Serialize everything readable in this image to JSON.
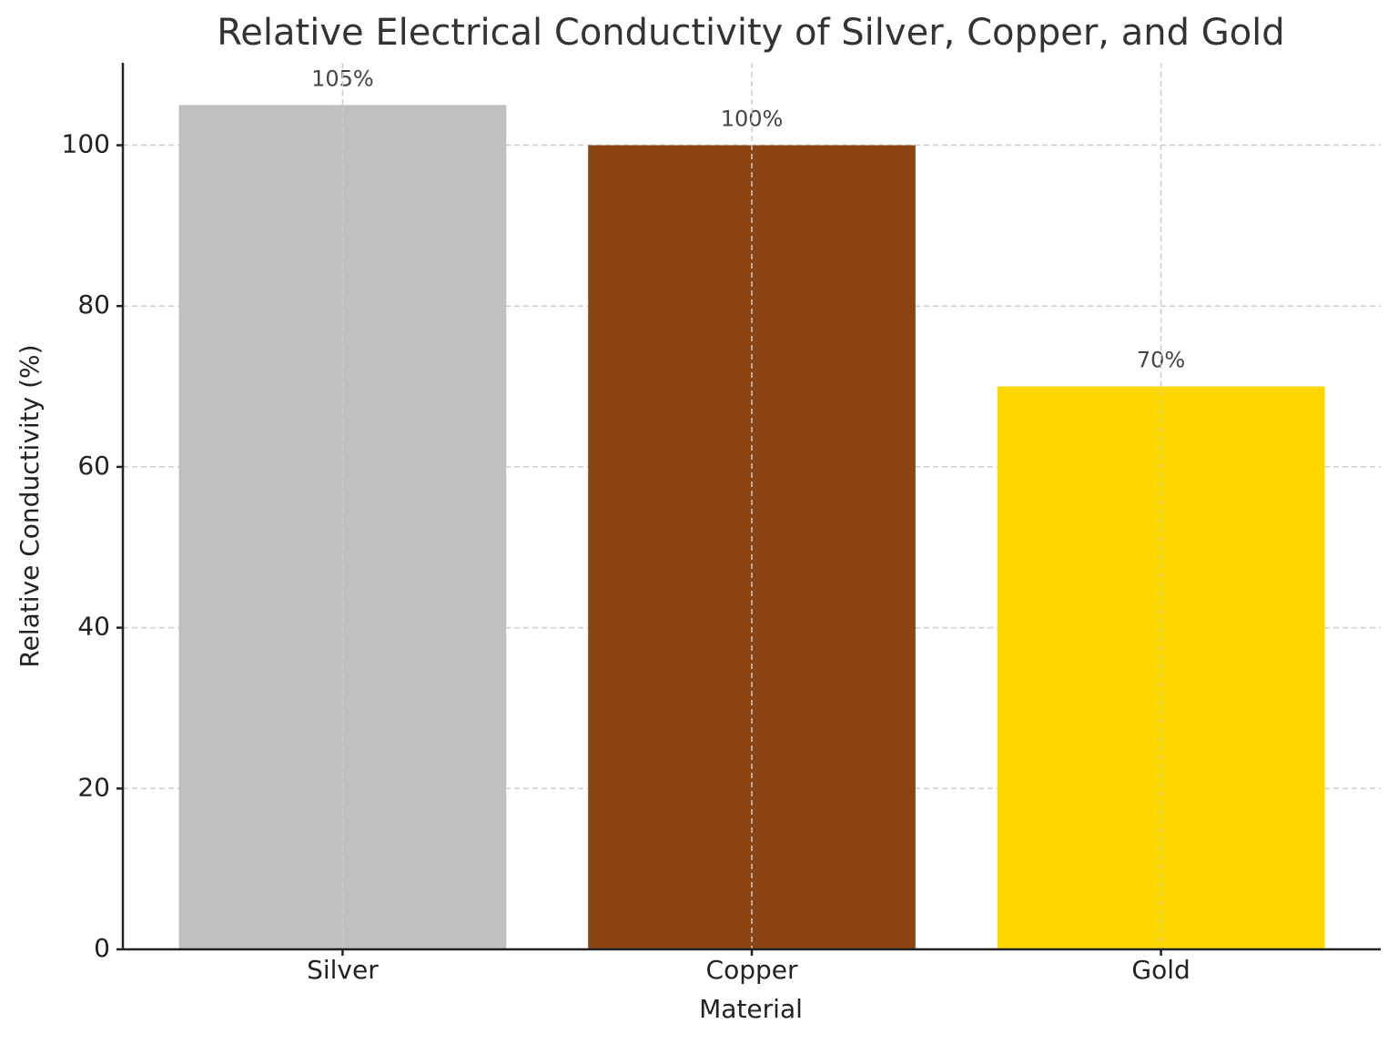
{
  "chart_data": {
    "type": "bar",
    "title": "Relative Electrical Conductivity of Silver, Copper, and Gold",
    "xlabel": "Material",
    "ylabel": "Relative Conductivity (%)",
    "categories": [
      "Silver",
      "Copper",
      "Gold"
    ],
    "values": [
      105,
      100,
      70
    ],
    "value_labels": [
      "105%",
      "100%",
      "70%"
    ],
    "colors": [
      "#c0c0c0",
      "#8b4513",
      "#ffd700"
    ],
    "ylim": [
      0,
      110.25
    ],
    "yticks": [
      0,
      20,
      40,
      60,
      80,
      100
    ],
    "grid": true
  }
}
